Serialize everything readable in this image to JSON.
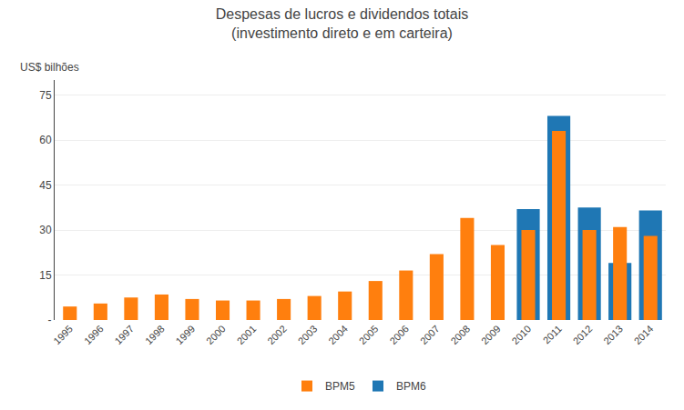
{
  "chart_data": {
    "type": "bar",
    "title": "Despesas de lucros e dividendos totais",
    "subtitle": "(investimento direto e em carteira)",
    "ylabel": "US$ bilhões",
    "categories": [
      "1995",
      "1996",
      "1997",
      "1998",
      "1999",
      "2000",
      "2001",
      "2002",
      "2003",
      "2004",
      "2005",
      "2006",
      "2007",
      "2008",
      "2009",
      "2010",
      "2011",
      "2012",
      "2013",
      "2014"
    ],
    "series": [
      {
        "name": "BPM6",
        "values": [
          0,
          0,
          0,
          0,
          0,
          0,
          0,
          0,
          0,
          0,
          0,
          0,
          0,
          0,
          0,
          37.0,
          68.0,
          37.5,
          19.0,
          36.5
        ]
      },
      {
        "name": "BPM5",
        "values": [
          4.5,
          5.5,
          7.5,
          8.5,
          7.0,
          6.5,
          6.5,
          7.0,
          8.0,
          9.5,
          13.0,
          16.5,
          22.0,
          34.0,
          25.0,
          30.0,
          63.0,
          30.0,
          31.0,
          28.0
        ]
      }
    ],
    "ylim": [
      0,
      80
    ],
    "yticks": [
      {
        "value": 0,
        "label": "-"
      },
      15,
      30,
      45,
      60,
      75
    ],
    "grid": true,
    "legend": "bottom"
  }
}
